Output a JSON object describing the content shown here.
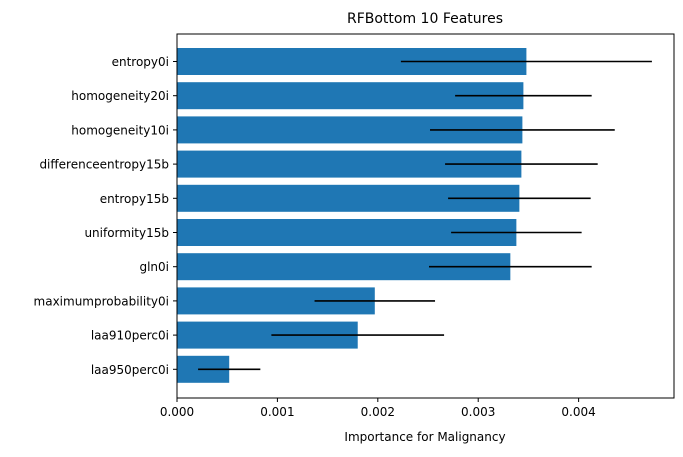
{
  "chart_data": {
    "type": "bar",
    "orientation": "horizontal",
    "title": "RFBottom 10 Features",
    "xlabel": "Importance for Malignancy",
    "ylabel": "",
    "xlim": [
      0,
      0.00495
    ],
    "xticks": [
      0,
      0.001,
      0.002,
      0.003,
      0.004
    ],
    "xtick_labels": [
      "0.000",
      "0.001",
      "0.002",
      "0.003",
      "0.004"
    ],
    "bar_color": "#1f77b4",
    "error_color": "#000000",
    "grid": false,
    "categories": [
      "entropy0i",
      "homogeneity20i",
      "homogeneity10i",
      "differenceentropy15b",
      "entropy15b",
      "uniformity15b",
      "gln0i",
      "maximumprobability0i",
      "laa910perc0i",
      "laa950perc0i"
    ],
    "values": [
      0.00348,
      0.00345,
      0.00344,
      0.00343,
      0.00341,
      0.00338,
      0.00332,
      0.00197,
      0.0018,
      0.00052
    ],
    "errors": [
      0.00125,
      0.00068,
      0.00092,
      0.00076,
      0.00071,
      0.00065,
      0.00081,
      0.0006,
      0.00086,
      0.00031
    ]
  }
}
